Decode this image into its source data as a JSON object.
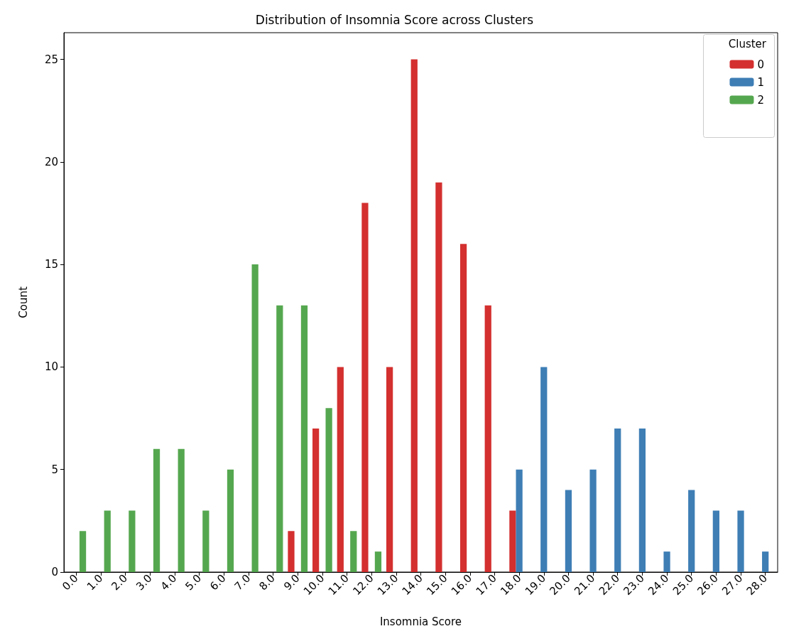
{
  "chart_data": {
    "type": "bar",
    "title": "Distribution of Insomnia Score across Clusters",
    "xlabel": "Insomnia Score",
    "ylabel": "Count",
    "legend_title": "Cluster",
    "legend": "top right",
    "grid": false,
    "categories": [
      "0.0",
      "1.0",
      "2.0",
      "3.0",
      "4.0",
      "5.0",
      "6.0",
      "7.0",
      "8.0",
      "9.0",
      "10.0",
      "11.0",
      "12.0",
      "13.0",
      "14.0",
      "15.0",
      "16.0",
      "17.0",
      "18.0",
      "19.0",
      "20.0",
      "21.0",
      "22.0",
      "23.0",
      "24.0",
      "25.0",
      "26.0",
      "27.0",
      "28.0"
    ],
    "ylim": [
      0,
      26.3
    ],
    "yticks": [
      0,
      5,
      10,
      15,
      20,
      25
    ],
    "series": [
      {
        "name": "0",
        "color": "#d3302f",
        "values": [
          null,
          null,
          null,
          null,
          null,
          null,
          null,
          null,
          null,
          2,
          7,
          10,
          18,
          10,
          25,
          19,
          16,
          13,
          3,
          null,
          null,
          null,
          null,
          null,
          null,
          null,
          null,
          null,
          null
        ]
      },
      {
        "name": "1",
        "color": "#3e7eb5",
        "values": [
          null,
          null,
          null,
          null,
          null,
          null,
          null,
          null,
          null,
          null,
          null,
          null,
          null,
          null,
          null,
          null,
          null,
          null,
          5,
          10,
          4,
          5,
          7,
          7,
          1,
          4,
          3,
          3,
          1
        ]
      },
      {
        "name": "2",
        "color": "#55a74f",
        "values": [
          2,
          3,
          3,
          6,
          6,
          3,
          5,
          15,
          13,
          13,
          8,
          2,
          1,
          null,
          null,
          null,
          null,
          null,
          null,
          null,
          null,
          null,
          null,
          null,
          null,
          null,
          null,
          null,
          null
        ]
      }
    ]
  }
}
